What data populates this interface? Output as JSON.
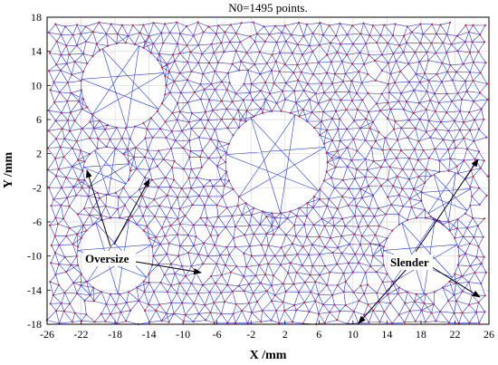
{
  "title": "N0=1495 points.",
  "xlabel": "X /mm",
  "ylabel": "Y /mm",
  "x_ticks": [
    "-26",
    "-22",
    "-18",
    "-14",
    "-10",
    "-6",
    "-2",
    "2",
    "6",
    "10",
    "14",
    "18",
    "22",
    "26"
  ],
  "y_ticks": [
    "18",
    "14",
    "10",
    "6",
    "2",
    "-2",
    "-6",
    "-10",
    "-14",
    "-18"
  ],
  "xlim": [
    -26,
    26
  ],
  "ylim": [
    -18,
    18
  ],
  "grid": true,
  "colors": {
    "edges": "#1f35e6",
    "nodes": "#e0182e",
    "grid": "#d9d9d9",
    "annotation": "#000000"
  },
  "annotations": {
    "oversize_label": "Oversize",
    "slender_label": "Slender"
  },
  "mesh": {
    "node_count": 1495,
    "holes": [
      {
        "shape": "polygon",
        "center": [
          -17,
          10
        ],
        "radius": 5
      },
      {
        "shape": "circle",
        "center": [
          -19,
          0
        ],
        "radius": 2.8
      },
      {
        "shape": "circle",
        "center": [
          -18,
          -10
        ],
        "radius": 4.5
      },
      {
        "shape": "circle",
        "center": [
          1,
          1
        ],
        "radius": 6
      },
      {
        "shape": "circle",
        "center": [
          18,
          -10
        ],
        "radius": 4.5
      },
      {
        "shape": "circle",
        "center": [
          21,
          -3
        ],
        "radius": 3
      }
    ]
  }
}
